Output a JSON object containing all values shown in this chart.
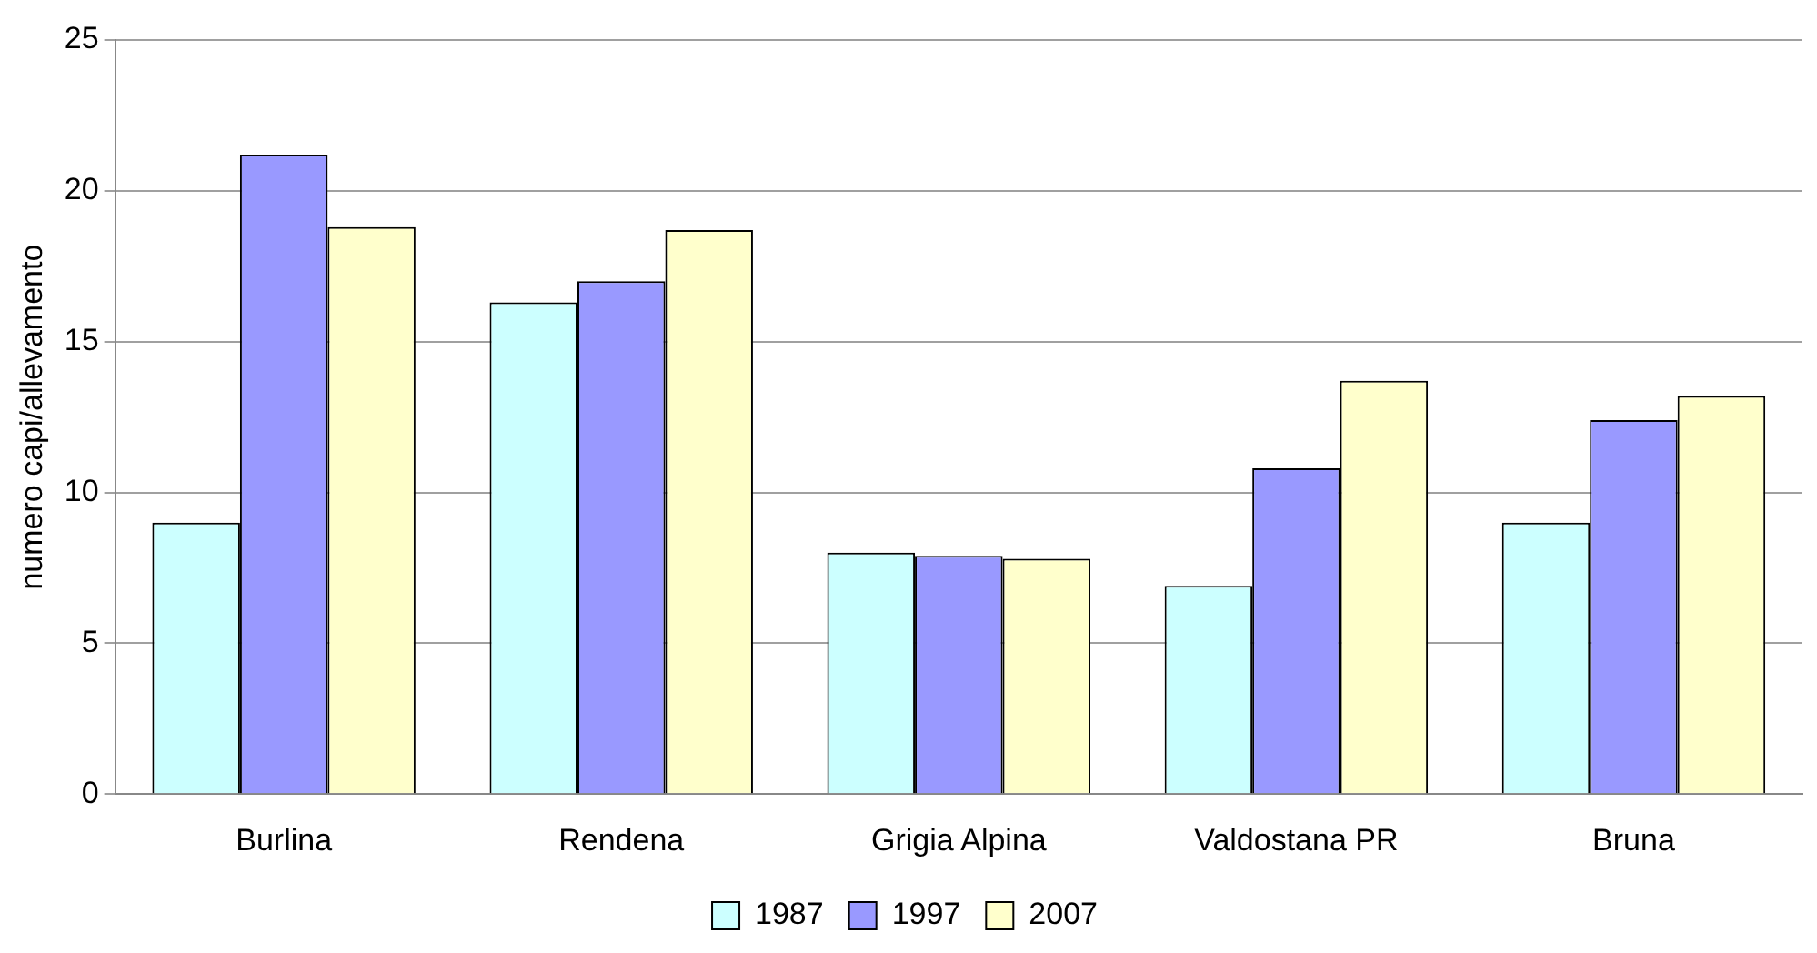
{
  "chart_data": {
    "type": "bar",
    "ylabel": "numero capi/allevamento",
    "categories": [
      "Burlina",
      "Rendena",
      "Grigia Alpina",
      "Valdostana PR",
      "Bruna"
    ],
    "series": [
      {
        "name": "1987",
        "color": "#ccffff",
        "values": [
          9.0,
          16.3,
          8.0,
          6.9,
          9.0
        ]
      },
      {
        "name": "1997",
        "color": "#9999ff",
        "values": [
          21.2,
          17.0,
          7.9,
          10.8,
          12.4
        ]
      },
      {
        "name": "2007",
        "color": "#ffffcc",
        "values": [
          18.8,
          18.7,
          7.8,
          13.7,
          13.2
        ]
      }
    ],
    "ylim": [
      0,
      25
    ],
    "yticks": [
      0,
      5,
      10,
      15,
      20,
      25
    ],
    "grid": "y",
    "legend": "bottom"
  }
}
